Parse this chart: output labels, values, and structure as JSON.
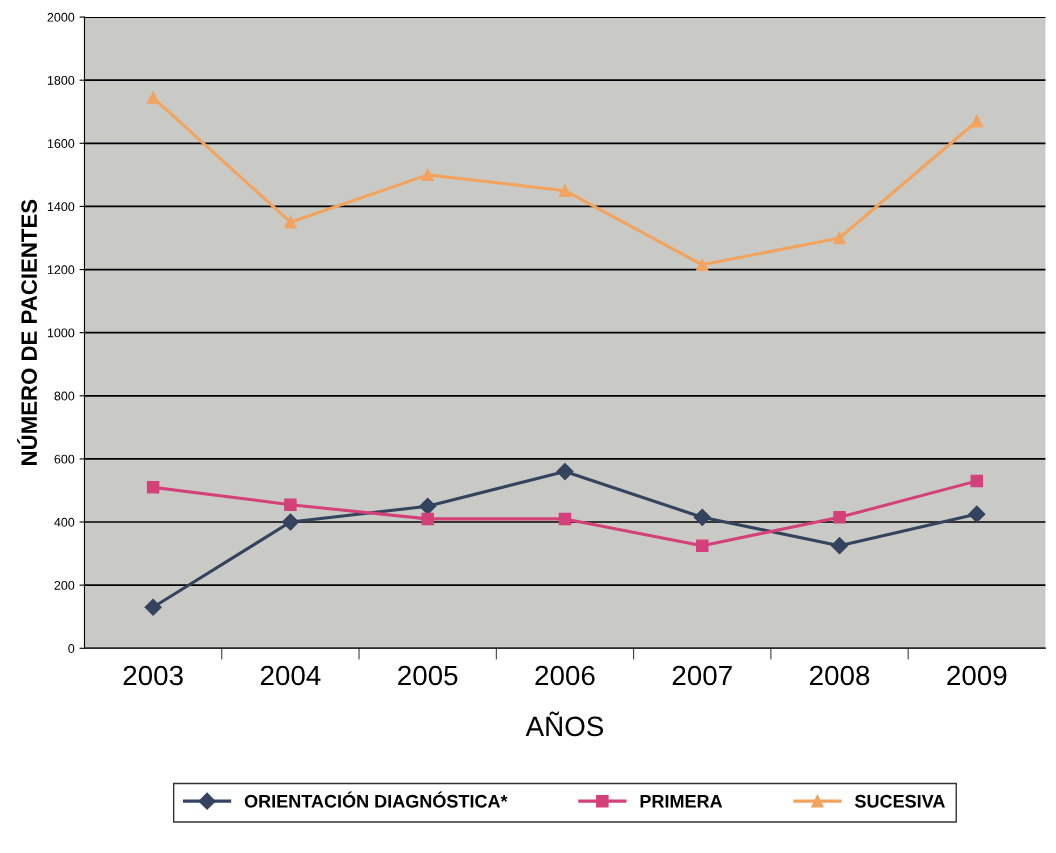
{
  "chart_data": {
    "type": "line",
    "xlabel": "AÑOS",
    "ylabel": "NÚMERO DE PACIENTES",
    "categories": [
      "2003",
      "2004",
      "2005",
      "2006",
      "2007",
      "2008",
      "2009"
    ],
    "series": [
      {
        "name": "ORIENTACIÓN DIAGNÓSTICA*",
        "color": "#34435e",
        "marker": "diamond",
        "values": [
          130,
          400,
          450,
          560,
          415,
          325,
          425
        ]
      },
      {
        "name": "PRIMERA",
        "color": "#d4407a",
        "marker": "square",
        "values": [
          510,
          455,
          410,
          410,
          325,
          415,
          530
        ]
      },
      {
        "name": "SUCESIVA",
        "color": "#f2a35e",
        "marker": "triangle",
        "values": [
          1745,
          1350,
          1500,
          1450,
          1215,
          1300,
          1670
        ]
      }
    ],
    "ylim": [
      0,
      2000
    ],
    "yticks": [
      0,
      200,
      400,
      600,
      800,
      1000,
      1200,
      1400,
      1600,
      1800,
      2000
    ],
    "grid": "y",
    "legend": "bottom",
    "line_style": "solid"
  }
}
